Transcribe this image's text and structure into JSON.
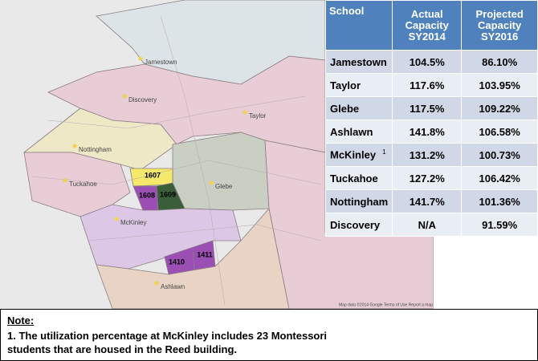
{
  "map": {
    "labels": [
      {
        "text": "Jamestown"
      },
      {
        "text": "Discovery"
      },
      {
        "text": "Taylor"
      },
      {
        "text": "Nottingham"
      },
      {
        "text": "Tuckahoe"
      },
      {
        "text": "Glebe"
      },
      {
        "text": "McKinley"
      },
      {
        "text": "Ashlawn"
      }
    ],
    "units": [
      "1607",
      "1608",
      "1609",
      "1410",
      "1411"
    ],
    "attribution": "Map data ©2014 Google   Terms of Use   Report a map error"
  },
  "table": {
    "header": [
      "School",
      "Actual Capacity SY2014",
      "Projected Capacity SY2016"
    ],
    "rows": [
      [
        "Jamestown",
        "104.5%",
        "86.10%"
      ],
      [
        "Taylor",
        "117.6%",
        "103.95%"
      ],
      [
        "Glebe",
        "117.5%",
        "109.22%"
      ],
      [
        "Ashlawn",
        "141.8%",
        "106.58%"
      ],
      [
        "McKinley",
        "131.2%",
        "100.73%"
      ],
      [
        "Tuckahoe",
        "127.2%",
        "106.42%"
      ],
      [
        "Nottingham",
        "141.7%",
        "101.36%"
      ],
      [
        "Discovery",
        "N/A",
        "91.59%"
      ]
    ],
    "footnote_marker": "1"
  },
  "note": {
    "title": "Note:",
    "text": "1. The utilization percentage at McKinley includes 23 Montessori students that are housed in the Reed building."
  }
}
